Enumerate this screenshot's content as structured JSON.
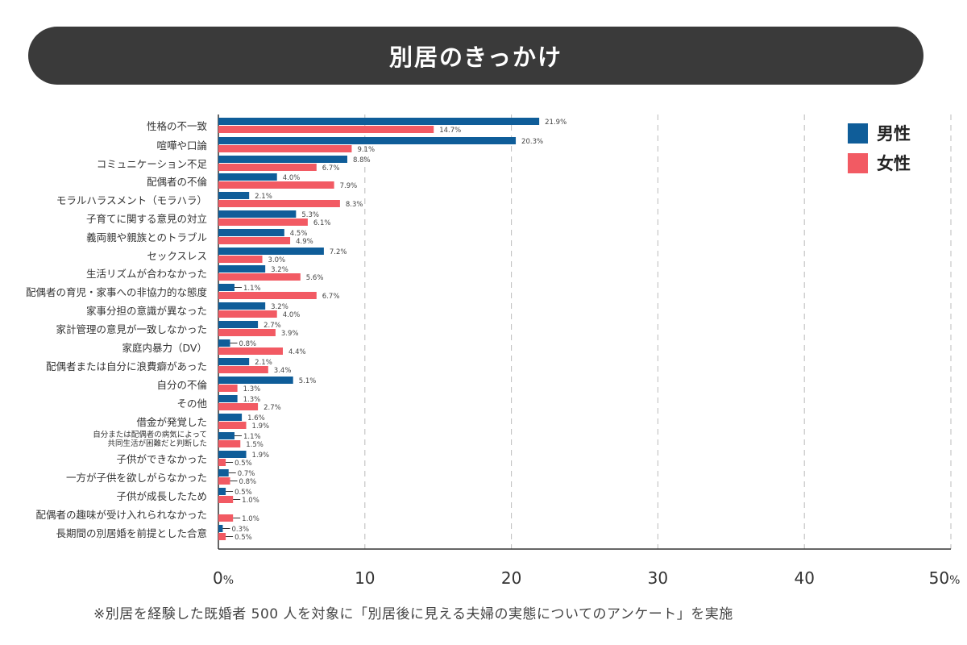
{
  "title": "別居のきっかけ",
  "legend": {
    "male": "男性",
    "female": "女性"
  },
  "colors": {
    "male": "#0f5d99",
    "female": "#f25a63",
    "banner": "#3a3a3a"
  },
  "footnote": "※別居を経験した既婚者 500 人を対象に「別居後に見える夫婦の実態についてのアンケート」を実施",
  "chart_data": {
    "type": "bar",
    "orientation": "horizontal",
    "categories": [
      "性格の不一致",
      "喧嘩や口論",
      "コミュニケーション不足",
      "配偶者の不倫",
      "モラルハラスメント（モラハラ）",
      "子育てに関する意見の対立",
      "義両親や親族とのトラブル",
      "セックスレス",
      "生活リズムが合わなかった",
      "配偶者の育児・家事への非協力的な態度",
      "家事分担の意識が異なった",
      "家計管理の意見が一致しなかった",
      "家庭内暴力（DV）",
      "配偶者または自分に浪費癖があった",
      "自分の不倫",
      "その他",
      "借金が発覚した",
      "自分または配偶者の病気によって 共同生活が困難だと判断した",
      "子供ができなかった",
      "一方が子供を欲しがらなかった",
      "子供が成長したため",
      "配偶者の趣味が受け入れられなかった",
      "長期間の別居婚を前提とした合意"
    ],
    "series": [
      {
        "name": "男性",
        "values": [
          21.9,
          20.3,
          8.8,
          4.0,
          2.1,
          5.3,
          4.5,
          7.2,
          3.2,
          1.1,
          3.2,
          2.7,
          0.8,
          2.1,
          5.1,
          1.3,
          1.6,
          1.1,
          1.9,
          0.7,
          0.5,
          null,
          0.3
        ]
      },
      {
        "name": "女性",
        "values": [
          14.7,
          9.1,
          6.7,
          7.9,
          8.3,
          6.1,
          4.9,
          3.0,
          5.6,
          6.7,
          4.0,
          3.9,
          4.4,
          3.4,
          1.3,
          2.7,
          1.9,
          1.5,
          0.5,
          0.8,
          1.0,
          1.0,
          0.5
        ]
      }
    ],
    "value_labels": {
      "male": [
        "21.9",
        "20.3",
        "8.8",
        "4.0",
        "2.1",
        "5.3",
        "4.5",
        "7.2",
        "3.2",
        "1.1",
        "3.2",
        "2.7",
        "0.8",
        "2.1",
        "5.1",
        "1.3",
        "1.6",
        "1.1",
        "1.9",
        "0.7",
        "0.5",
        "",
        "0.3"
      ],
      "female": [
        "14.7",
        "9.1",
        "6.7",
        "7.9",
        "8.3",
        "6.1",
        "4.9",
        "3.0",
        "5.6",
        "6.7",
        "4.0",
        "3.9",
        "4.4",
        "3.4",
        "1.3",
        "2.7",
        "1.9",
        "1.5",
        "0.5",
        "0.8",
        "1.0",
        "1.0",
        "0.5"
      ]
    },
    "xticks": [
      "0",
      "10",
      "20",
      "30",
      "40",
      "50"
    ],
    "xtick_values": [
      0,
      10,
      20,
      30,
      40,
      50
    ],
    "percent_sign": "%",
    "xlim": [
      0,
      50
    ],
    "grid": "vertical dashed",
    "legend_position": "top-right"
  }
}
